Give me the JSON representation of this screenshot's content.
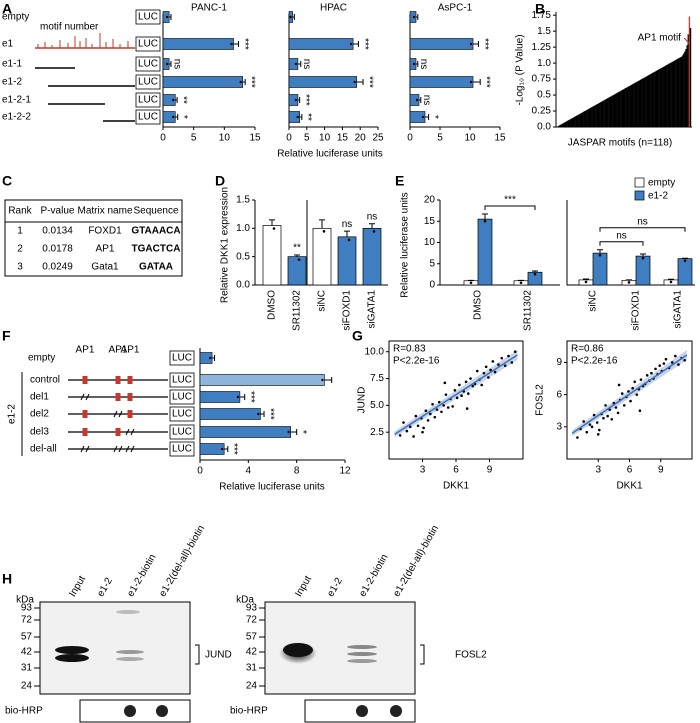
{
  "panel_labels": [
    "A",
    "B",
    "C",
    "D",
    "E",
    "F",
    "G",
    "H"
  ],
  "constructs_a": {
    "names": [
      "empty",
      "e1",
      "e1-1",
      "e1-2",
      "e1-2-1",
      "e1-2-2"
    ],
    "annotation": "motif number",
    "reporter": "LUC"
  },
  "chart_data": [
    {
      "type": "hbar",
      "title": "PANC-1",
      "values": [
        1,
        11.5,
        1,
        13,
        2,
        2
      ],
      "errors": [
        0.3,
        0.8,
        0.3,
        0.4,
        0.3,
        0.4
      ],
      "annotations": [
        null,
        "***",
        "ns",
        "***",
        "**",
        "*"
      ],
      "color": "#3f7fc1",
      "xlim": [
        0,
        15
      ],
      "xticks": [
        0,
        5,
        10,
        15
      ]
    },
    {
      "type": "hbar",
      "title": "HPAC",
      "xlabel": "Relative luciferase units",
      "values": [
        1,
        18,
        2.5,
        19,
        2.5,
        3
      ],
      "errors": [
        0.5,
        1.5,
        0.8,
        1.8,
        0.5,
        0.6
      ],
      "annotations": [
        null,
        "***",
        "ns",
        "***",
        "***",
        "**"
      ],
      "color": "#3f7fc1",
      "xlim": [
        0,
        25
      ],
      "xticks": [
        0,
        5,
        10,
        15,
        20,
        25
      ]
    },
    {
      "type": "hbar",
      "title": "AsPC-1",
      "values": [
        1,
        10.5,
        1,
        10.5,
        1.5,
        2.5
      ],
      "errors": [
        0.3,
        0.9,
        0.3,
        1.2,
        0.3,
        0.6
      ],
      "annotations": [
        null,
        "***",
        "ns",
        "***",
        "ns",
        "*"
      ],
      "color": "#3f7fc1",
      "xlim": [
        0,
        15
      ],
      "xticks": [
        0,
        5,
        10,
        15
      ]
    },
    {
      "type": "rank",
      "ylabel": "-Log₁₀ (P Value)",
      "xlabel": "JASPAR motifs (n=118)",
      "color": "#000000",
      "highlight_color": "#d23a2a",
      "annotation": {
        "text": "AP1 motif",
        "index": 116
      },
      "values": [
        0.01,
        0.02,
        0.03,
        0.04,
        0.05,
        0.06,
        0.07,
        0.08,
        0.09,
        0.1,
        0.11,
        0.12,
        0.13,
        0.14,
        0.15,
        0.16,
        0.17,
        0.18,
        0.19,
        0.2,
        0.21,
        0.22,
        0.23,
        0.24,
        0.25,
        0.26,
        0.27,
        0.28,
        0.29,
        0.3,
        0.31,
        0.32,
        0.33,
        0.34,
        0.35,
        0.36,
        0.37,
        0.38,
        0.39,
        0.4,
        0.41,
        0.42,
        0.43,
        0.44,
        0.45,
        0.46,
        0.47,
        0.48,
        0.49,
        0.5,
        0.51,
        0.52,
        0.53,
        0.54,
        0.55,
        0.56,
        0.57,
        0.58,
        0.59,
        0.6,
        0.61,
        0.62,
        0.63,
        0.64,
        0.65,
        0.66,
        0.67,
        0.68,
        0.69,
        0.7,
        0.71,
        0.72,
        0.73,
        0.74,
        0.75,
        0.76,
        0.77,
        0.78,
        0.79,
        0.8,
        0.81,
        0.82,
        0.83,
        0.84,
        0.85,
        0.86,
        0.87,
        0.88,
        0.89,
        0.9,
        0.91,
        0.92,
        0.93,
        0.94,
        0.95,
        0.96,
        0.97,
        0.98,
        0.99,
        1.0,
        1.01,
        1.02,
        1.03,
        1.04,
        1.05,
        1.06,
        1.07,
        1.08,
        1.09,
        1.1,
        1.12,
        1.15,
        1.18,
        1.22,
        1.28,
        1.45,
        1.73,
        1.55
      ],
      "ylim": [
        0,
        1.8
      ],
      "yticks": [
        {
          "value": 0,
          "label": "0.0"
        },
        0.25,
        {
          "value": 0.5,
          "label": "0.5"
        },
        0.75,
        {
          "value": 1,
          "label": "1.0"
        },
        1.25,
        1.5,
        1.75
      ]
    },
    {
      "type": "bar",
      "ylabel": "Relative DKK1 expression",
      "categories": [
        "DMSO",
        "SR11302"
      ],
      "values": [
        1.05,
        0.5
      ],
      "errors": [
        0.1,
        0.03
      ],
      "colors": [
        "#ffffff",
        "#3f7fc1"
      ],
      "annotations": [
        null,
        "**"
      ],
      "ylim": [
        0,
        1.5
      ],
      "yticks": [
        {
          "value": 0,
          "label": "0.0"
        },
        0.5,
        {
          "value": 1,
          "label": "1.0"
        },
        1.5
      ]
    },
    {
      "type": "bar",
      "categories": [
        "siNC",
        "siFOXD1",
        "siGATA1"
      ],
      "values": [
        1.0,
        0.85,
        1.0
      ],
      "errors": [
        0.15,
        0.1,
        0.08
      ],
      "colors": [
        "#ffffff",
        "#3f7fc1",
        "#3f7fc1"
      ],
      "annotations": [
        null,
        "ns",
        "ns"
      ],
      "ylim": [
        0,
        1.5
      ]
    },
    {
      "type": "grouped_bar",
      "ylabel": "Relative luciferase units",
      "categories": [
        "DMSO",
        "SR11302"
      ],
      "series": [
        {
          "name": "empty",
          "color": "#ffffff",
          "values": [
            1,
            1
          ],
          "errors": [
            0.1,
            0.1
          ]
        },
        {
          "name": "e1-2",
          "color": "#3f7fc1",
          "values": [
            15.5,
            3
          ],
          "errors": [
            1.2,
            0.3
          ]
        }
      ],
      "brackets": [
        {
          "label": "***",
          "series": 1,
          "categories": [
            0,
            1
          ]
        }
      ],
      "ylim": [
        0,
        20
      ],
      "yticks": [
        0,
        5,
        10,
        15,
        20
      ]
    },
    {
      "type": "grouped_bar",
      "categories": [
        "siNC",
        "siFOXD1",
        "siGATA1"
      ],
      "legend": "top-right",
      "series": [
        {
          "name": "empty",
          "color": "#ffffff",
          "values": [
            1.2,
            1.1,
            1.2
          ],
          "errors": [
            0.2,
            0.1,
            0.15
          ]
        },
        {
          "name": "e1-2",
          "color": "#3f7fc1",
          "values": [
            7.5,
            6.8,
            6.2
          ],
          "errors": [
            0.8,
            0.5,
            0.1
          ]
        }
      ],
      "brackets": [
        {
          "label": "ns",
          "series": 1,
          "categories": [
            0,
            1
          ]
        },
        {
          "label": "ns",
          "series": 1,
          "categories": [
            0,
            2
          ]
        }
      ],
      "ylim": [
        0,
        20
      ]
    },
    {
      "type": "hbar",
      "xlabel": "Relative luciferase units",
      "values": [
        1,
        10.3,
        3.3,
        5,
        7.5,
        2
      ],
      "errors": [
        0.2,
        0.6,
        0.4,
        0.3,
        0.5,
        0.3
      ],
      "colors": [
        "#3f7fc1",
        "#8fb4dd",
        "#3f7fc1",
        "#3f7fc1",
        "#3f7fc1",
        "#3f7fc1"
      ],
      "annotations": [
        null,
        null,
        "***",
        "***",
        "*",
        "***"
      ],
      "xlim": [
        0,
        12
      ],
      "xticks": [
        0,
        4,
        8,
        12
      ]
    },
    {
      "type": "scatter",
      "xlabel": "DKK1",
      "ylabel": "JUND",
      "annotations": [
        "R=0.83",
        "P<2.2e-16"
      ],
      "color": "#000000",
      "x": [
        1.0,
        1.3,
        1.6,
        1.9,
        2.2,
        2.4,
        2.6,
        2.9,
        3.1,
        3.3,
        3.5,
        3.7,
        3.9,
        4.1,
        4.3,
        4.5,
        4.7,
        4.9,
        5.1,
        5.3,
        5.5,
        5.7,
        5.9,
        6.1,
        6.3,
        6.5,
        6.7,
        6.9,
        7.1,
        7.3,
        7.5,
        7.7,
        7.9,
        8.1,
        8.3,
        8.5,
        8.7,
        8.9,
        9.1,
        9.3,
        9.5,
        9.8,
        10.1,
        10.4,
        10.7,
        11.0,
        11.3,
        3.0,
        5.0,
        7.0
      ],
      "y": [
        2.2,
        3.4,
        2.6,
        3.0,
        2.1,
        4.0,
        3.1,
        3.8,
        2.9,
        4.5,
        3.6,
        4.2,
        5.1,
        3.9,
        4.6,
        5.3,
        4.4,
        5.0,
        6.0,
        4.8,
        5.6,
        4.9,
        6.4,
        5.7,
        6.9,
        5.9,
        6.3,
        7.2,
        6.1,
        7.5,
        6.8,
        7.0,
        8.2,
        7.4,
        6.9,
        8.0,
        8.6,
        7.6,
        8.3,
        9.1,
        8.1,
        8.8,
        9.4,
        8.7,
        9.6,
        9.0,
        10.0,
        2.5,
        7.1,
        4.7
      ],
      "fit": {
        "x": [
          0.5,
          11.5
        ],
        "y": [
          2.3,
          9.7
        ]
      },
      "xlim": [
        0,
        12
      ],
      "xticks": [
        3,
        6,
        9
      ],
      "ylim": [
        0,
        11
      ],
      "yticks": [
        2.5,
        {
          "value": 5,
          "label": "5.0"
        },
        7.5,
        {
          "value": 10,
          "label": "10.0"
        }
      ]
    },
    {
      "type": "scatter",
      "xlabel": "DKK1",
      "ylabel": "FOSL2",
      "annotations": [
        "R=0.86",
        "P<2.2e-16"
      ],
      "color": "#000000",
      "x": [
        1.0,
        1.3,
        1.6,
        1.9,
        2.2,
        2.4,
        2.6,
        2.9,
        3.1,
        3.3,
        3.5,
        3.7,
        3.9,
        4.1,
        4.3,
        4.5,
        4.7,
        4.9,
        5.1,
        5.3,
        5.5,
        5.7,
        5.9,
        6.1,
        6.3,
        6.5,
        6.7,
        6.9,
        7.1,
        7.3,
        7.5,
        7.7,
        7.9,
        8.1,
        8.3,
        8.5,
        8.7,
        8.9,
        9.1,
        9.3,
        9.5,
        9.8,
        10.1,
        10.4,
        10.7,
        11.0,
        11.3,
        3.0,
        5.0,
        7.0
      ],
      "y": [
        2.0,
        2.8,
        3.5,
        2.5,
        3.2,
        3.0,
        4.1,
        3.4,
        2.7,
        4.2,
        3.8,
        5.0,
        4.0,
        4.6,
        3.7,
        5.2,
        4.8,
        4.3,
        5.5,
        6.1,
        5.0,
        5.8,
        6.3,
        5.4,
        6.6,
        7.2,
        6.0,
        6.5,
        7.4,
        6.8,
        7.0,
        7.8,
        7.3,
        8.0,
        7.5,
        8.4,
        7.9,
        8.7,
        8.2,
        8.9,
        9.3,
        8.5,
        9.0,
        9.6,
        8.8,
        9.4,
        9.2,
        2.3,
        6.9,
        4.5
      ],
      "fit": {
        "x": [
          0.5,
          11.5
        ],
        "y": [
          2.4,
          9.7
        ]
      },
      "xlim": [
        0,
        12
      ],
      "xticks": [
        3,
        6,
        9
      ],
      "ylim": [
        0,
        11
      ],
      "yticks": [
        3,
        6,
        9
      ]
    }
  ],
  "table_c": {
    "header": [
      "Rank",
      "P-value",
      "Matrix name",
      "Sequence"
    ],
    "rows": [
      [
        "1",
        "0.0134",
        "FOXD1",
        "GTAAACA"
      ],
      [
        "2",
        "0.0178",
        "AP1",
        "TGACTCA"
      ],
      [
        "3",
        "0.0249",
        "Gata1",
        "GATAA"
      ]
    ]
  },
  "constructs_f": {
    "names": [
      "empty",
      "control",
      "del1",
      "del2",
      "del3",
      "del-all"
    ],
    "group": "e1-2",
    "motif": "AP1",
    "reporter": "LUC"
  },
  "blots_h": {
    "unit": "kDa",
    "markers": [
      93,
      72,
      57,
      42,
      31,
      24
    ],
    "lanes": [
      "Input",
      "e1-2",
      "e1-2-biotin",
      "e1-2(del-all)-biotin"
    ],
    "targets": [
      "JUND",
      "FOSL2"
    ],
    "probe": "bio-HRP"
  }
}
